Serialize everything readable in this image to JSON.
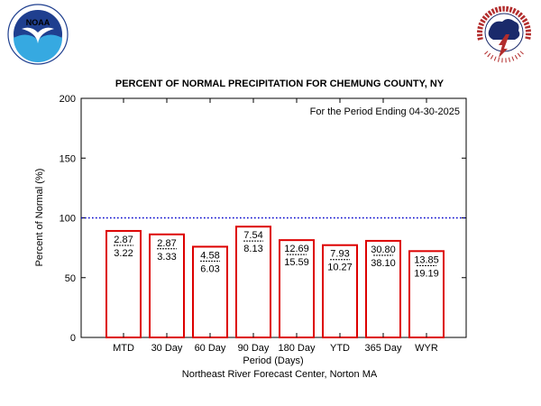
{
  "logos": {
    "noaa": {
      "icon": "noaa-logo-icon",
      "text": "NOAA",
      "ring_text": "NATIONAL OCEANIC AND ATMOSPHERIC ADMINISTRATION · U.S. DEPARTMENT OF COMMERCE",
      "colors": {
        "navy": "#1f3f8f",
        "cyan": "#36a9e1",
        "white": "#ffffff"
      }
    },
    "nws": {
      "icon": "nws-logo-icon",
      "ring_text": "NATIONAL WEATHER SERVICE",
      "colors": {
        "red": "#b22d2d",
        "navy": "#1a2a6b",
        "blue": "#2f4fa8",
        "white": "#ffffff"
      }
    }
  },
  "chart_data": {
    "type": "bar",
    "title": "PERCENT OF NORMAL PRECIPITATION FOR CHEMUNG COUNTY, NY",
    "annotation": "For the Period Ending 04-30-2025",
    "xlabel": "Period (Days)",
    "ylabel": "Percent of Normal (%)",
    "footer": "Northeast River Forecast Center, Norton MA",
    "ylim": [
      0,
      200
    ],
    "yticks": [
      "0",
      "50",
      "100",
      "150",
      "200"
    ],
    "reference_line": {
      "value": 100,
      "style": "dotted",
      "color": "#0000cc"
    },
    "grid": false,
    "bar_color": "#dd0000",
    "categories": [
      "MTD",
      "30 Day",
      "60 Day",
      "90 Day",
      "180 Day",
      "YTD",
      "365 Day",
      "WYR"
    ],
    "values": [
      89.1,
      86.2,
      75.9,
      92.7,
      81.4,
      77.2,
      80.8,
      72.2
    ],
    "observed": [
      "2.87",
      "2.87",
      "4.58",
      "7.54",
      "12.69",
      "7.93",
      "30.80",
      "13.85"
    ],
    "normal": [
      "3.22",
      "3.33",
      "6.03",
      "8.13",
      "15.59",
      "10.27",
      "38.10",
      "19.19"
    ]
  }
}
